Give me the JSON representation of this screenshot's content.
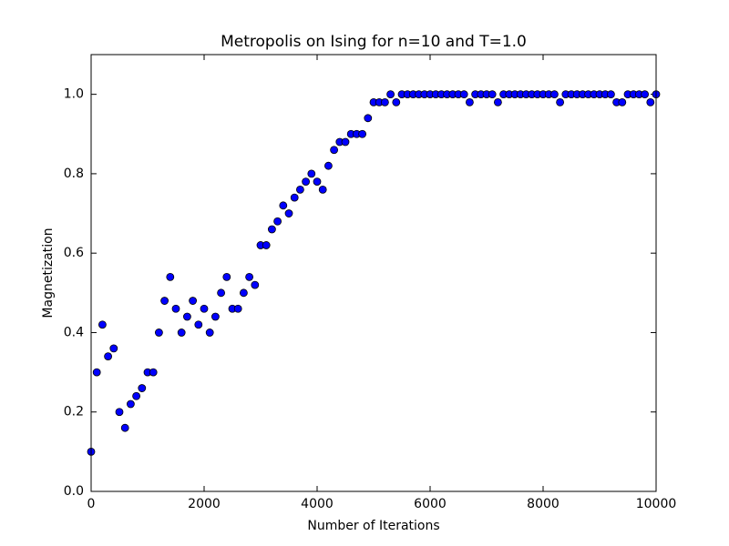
{
  "chart_data": {
    "type": "scatter",
    "title": "Metropolis on Ising for n=10 and T=1.0",
    "x_label": "Number of Iterations",
    "y_label": "Magnetization",
    "x": [
      0,
      100,
      200,
      300,
      400,
      500,
      600,
      700,
      800,
      900,
      1000,
      1100,
      1200,
      1300,
      1400,
      1500,
      1600,
      1700,
      1800,
      1900,
      2000,
      2100,
      2200,
      2300,
      2400,
      2500,
      2600,
      2700,
      2800,
      2900,
      3000,
      3100,
      3200,
      3300,
      3400,
      3500,
      3600,
      3700,
      3800,
      3900,
      4000,
      4100,
      4200,
      4300,
      4400,
      4500,
      4600,
      4700,
      4800,
      4900,
      5000,
      5100,
      5200,
      5300,
      5400,
      5500,
      5600,
      5700,
      5800,
      5900,
      6000,
      6100,
      6200,
      6300,
      6400,
      6500,
      6600,
      6700,
      6800,
      6900,
      7000,
      7100,
      7200,
      7300,
      7400,
      7500,
      7600,
      7700,
      7800,
      7900,
      8000,
      8100,
      8200,
      8300,
      8400,
      8500,
      8600,
      8700,
      8800,
      8900,
      9000,
      9100,
      9200,
      9300,
      9400,
      9500,
      9600,
      9700,
      9800,
      9900,
      10000
    ],
    "series": [
      {
        "color": "#0000ff",
        "values": [
          0.1,
          0.3,
          0.42,
          0.34,
          0.36,
          0.2,
          0.16,
          0.22,
          0.24,
          0.26,
          0.3,
          0.3,
          0.4,
          0.48,
          0.54,
          0.46,
          0.4,
          0.44,
          0.48,
          0.42,
          0.46,
          0.4,
          0.44,
          0.5,
          0.54,
          0.46,
          0.46,
          0.5,
          0.54,
          0.52,
          0.62,
          0.62,
          0.66,
          0.68,
          0.72,
          0.7,
          0.74,
          0.76,
          0.78,
          0.8,
          0.78,
          0.76,
          0.82,
          0.86,
          0.88,
          0.88,
          0.9,
          0.9,
          0.9,
          0.94,
          0.98,
          0.98,
          0.98,
          1.0,
          0.98,
          1.0,
          1.0,
          1.0,
          1.0,
          1.0,
          1.0,
          1.0,
          1.0,
          1.0,
          1.0,
          1.0,
          1.0,
          0.98,
          1.0,
          1.0,
          1.0,
          1.0,
          0.98,
          1.0,
          1.0,
          1.0,
          1.0,
          1.0,
          1.0,
          1.0,
          1.0,
          1.0,
          1.0,
          0.98,
          1.0,
          1.0,
          1.0,
          1.0,
          1.0,
          1.0,
          1.0,
          1.0,
          1.0,
          0.98,
          0.98,
          1.0,
          1.0,
          1.0,
          1.0,
          0.98,
          1.0
        ]
      }
    ],
    "xlim": [
      0,
      10000
    ],
    "xticks": [
      0,
      2000,
      4000,
      6000,
      8000,
      10000
    ],
    "ylim": [
      0,
      1.1
    ],
    "yticks": [
      {
        "value": 0,
        "label": "0.0"
      },
      0.2,
      0.4,
      0.6,
      0.8,
      {
        "value": 1,
        "label": "1.0"
      }
    ]
  }
}
